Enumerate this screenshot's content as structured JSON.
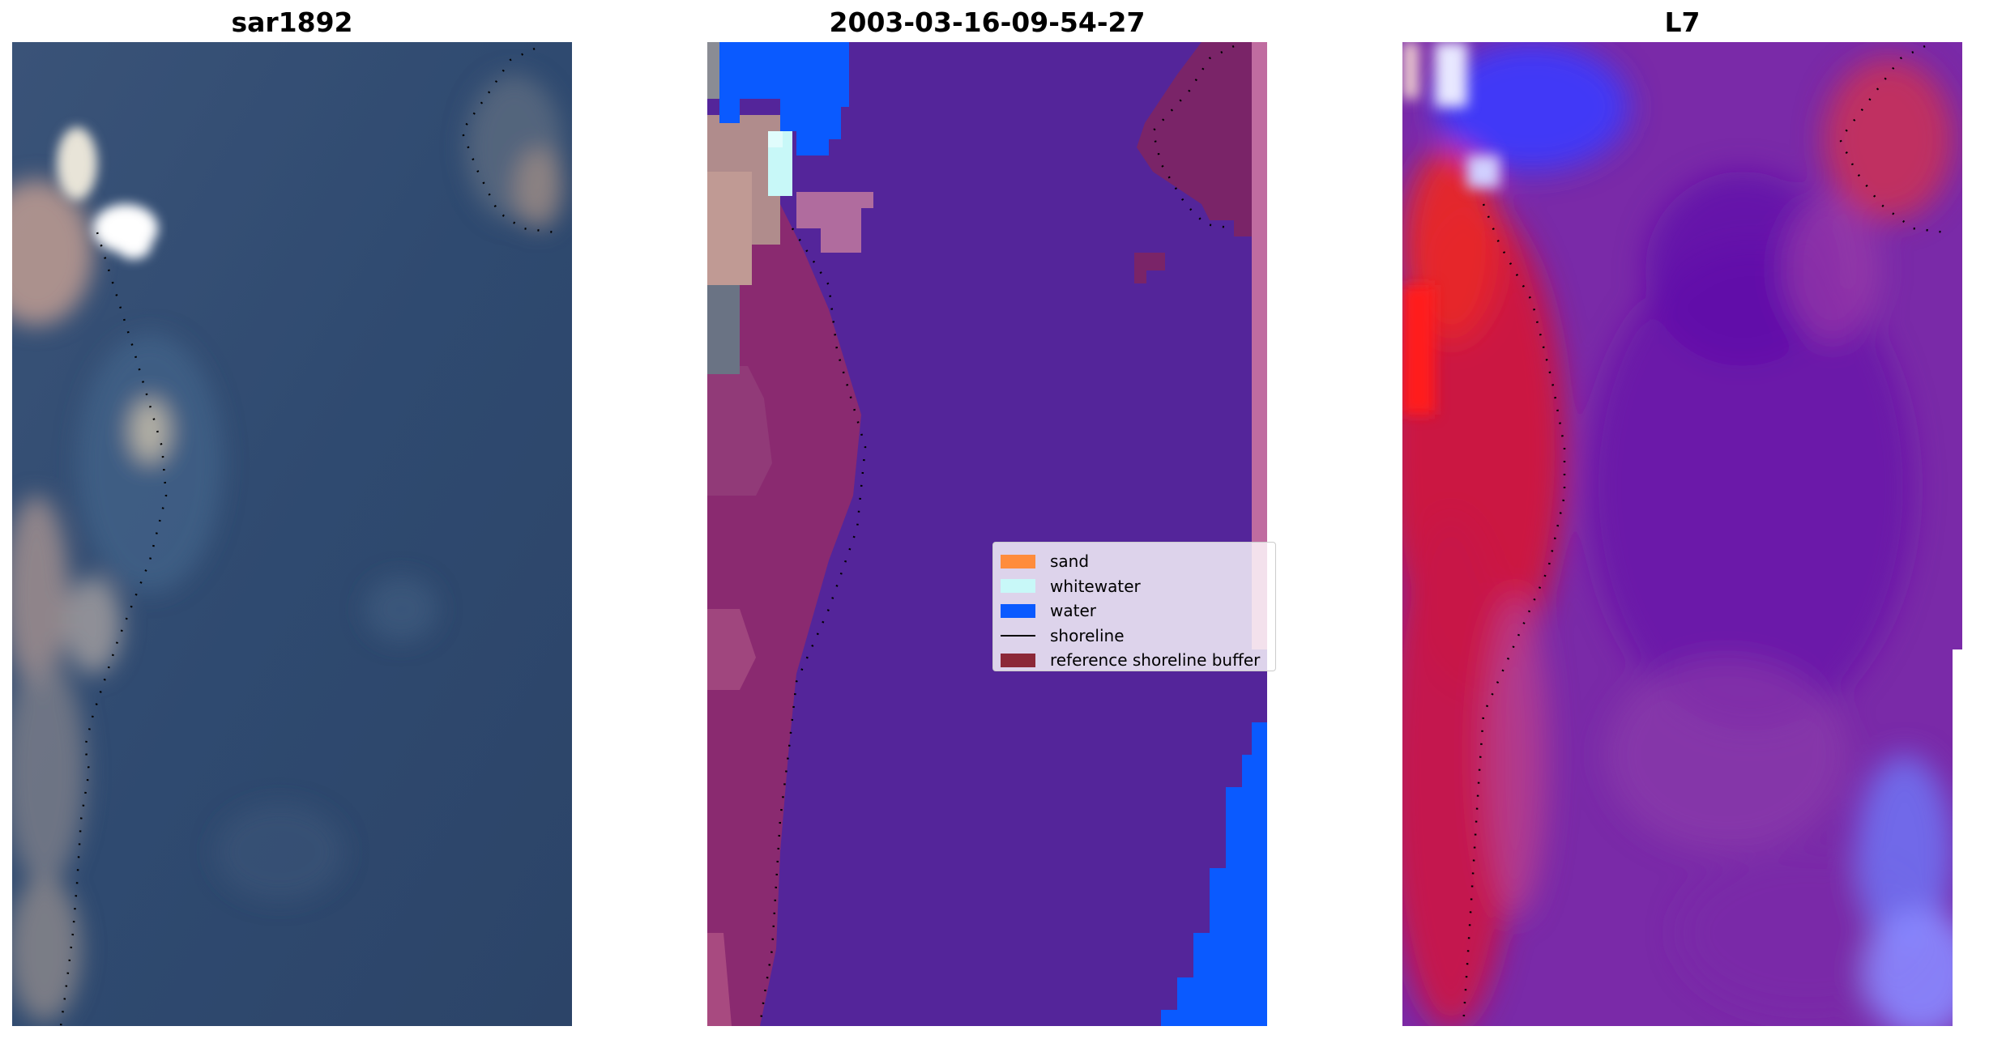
{
  "panels": [
    {
      "title": "sar1892"
    },
    {
      "title": "2003-03-16-09-54-27"
    },
    {
      "title": "L7"
    }
  ],
  "legend": {
    "items": [
      {
        "label": "sand",
        "color": "#ff8c3c",
        "kind": "patch"
      },
      {
        "label": "whitewater",
        "color": "#c8f8f8",
        "kind": "patch"
      },
      {
        "label": "water",
        "color": "#0a5aff",
        "kind": "patch"
      },
      {
        "label": "shoreline",
        "color": "#000000",
        "kind": "line"
      },
      {
        "label": "reference shoreline buffer",
        "color": "#8c2838",
        "kind": "patch"
      }
    ]
  }
}
